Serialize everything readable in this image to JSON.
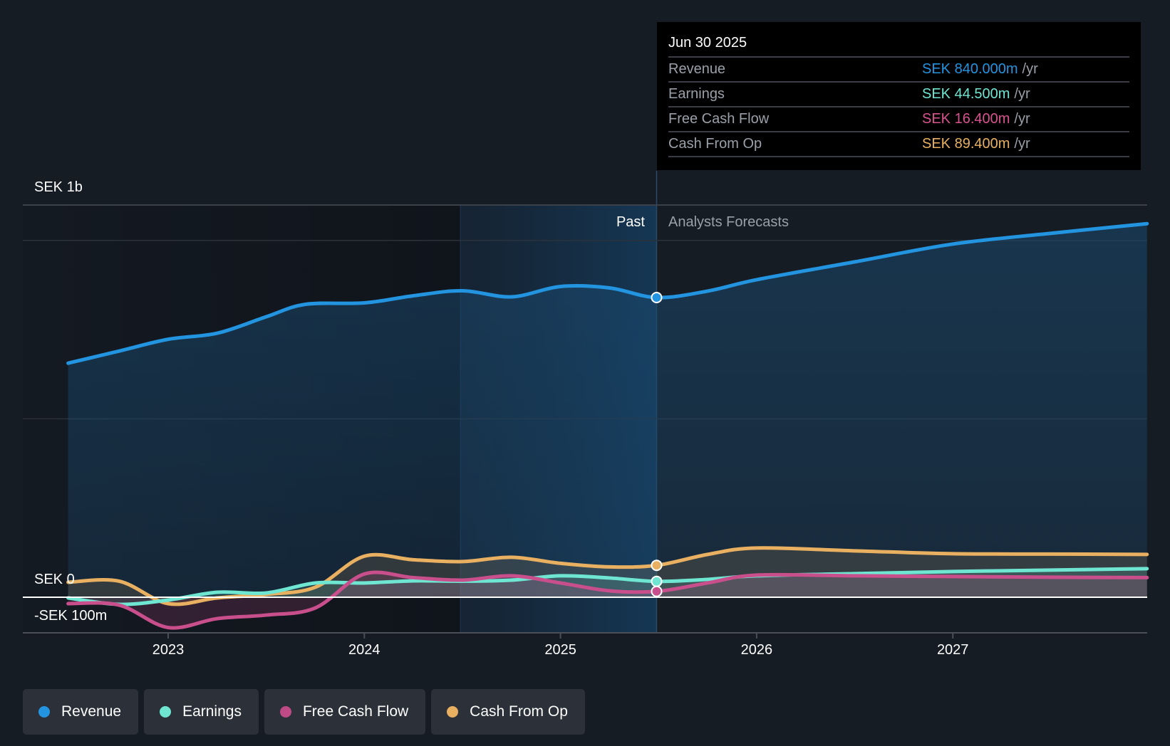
{
  "tooltip": {
    "date": "Jun 30 2025",
    "rows": [
      {
        "label": "Revenue",
        "value": "SEK 840.000m",
        "unit": "/yr",
        "color": "#2394e0"
      },
      {
        "label": "Earnings",
        "value": "SEK 44.500m",
        "unit": "/yr",
        "color": "#6ee6d2"
      },
      {
        "label": "Free Cash Flow",
        "value": "SEK 16.400m",
        "unit": "/yr",
        "color": "#d9528f"
      },
      {
        "label": "Cash From Op",
        "value": "SEK 89.400m",
        "unit": "/yr",
        "color": "#e8b060"
      }
    ]
  },
  "regions": {
    "past": "Past",
    "forecast": "Analysts Forecasts"
  },
  "legend": [
    {
      "label": "Revenue",
      "color": "#2394e0"
    },
    {
      "label": "Earnings",
      "color": "#6ee6d2"
    },
    {
      "label": "Free Cash Flow",
      "color": "#c04a86"
    },
    {
      "label": "Cash From Op",
      "color": "#e8b060"
    }
  ],
  "chart_data": {
    "type": "line",
    "title": "",
    "xlabel": "",
    "ylabel": "",
    "unit": "SEK millions per year",
    "x_range": [
      2022.25,
      2028.0
    ],
    "ylim": [
      -100,
      1100
    ],
    "y_tick_labels": [
      {
        "value": 1000,
        "label": "SEK 1b"
      },
      {
        "value": 0,
        "label": "SEK 0"
      },
      {
        "value": -100,
        "label": "-SEK 100m"
      }
    ],
    "x_ticks": [
      {
        "value": 2023,
        "label": "2023"
      },
      {
        "value": 2024,
        "label": "2024"
      },
      {
        "value": 2025,
        "label": "2025"
      },
      {
        "value": 2026,
        "label": "2026"
      },
      {
        "value": 2027,
        "label": "2027"
      }
    ],
    "past_highlight_start": 2024.49,
    "forecast_start": 2025.49,
    "marker_date": "Jun 30 2025",
    "series": [
      {
        "name": "Revenue",
        "color": "#2394e0",
        "x": [
          2022.49,
          2022.75,
          2023.0,
          2023.25,
          2023.5,
          2023.7,
          2024.0,
          2024.25,
          2024.5,
          2024.75,
          2025.0,
          2025.25,
          2025.49,
          2025.75,
          2026.0,
          2026.5,
          2027.0,
          2027.5,
          2027.99
        ],
        "values": [
          656,
          690,
          723,
          740,
          786,
          821,
          825,
          845,
          859,
          842,
          871,
          867,
          840,
          858,
          890,
          940,
          990,
          1020,
          1047
        ]
      },
      {
        "name": "Earnings",
        "color": "#6ee6d2",
        "x": [
          2022.49,
          2022.75,
          2023.0,
          2023.25,
          2023.5,
          2023.75,
          2024.0,
          2024.25,
          2024.5,
          2024.75,
          2025.0,
          2025.25,
          2025.49,
          2025.75,
          2026.0,
          2026.5,
          2027.0,
          2027.5,
          2027.99
        ],
        "values": [
          -2,
          -20,
          -8,
          14,
          12,
          40,
          40,
          46,
          45,
          48,
          60,
          54,
          44.5,
          50,
          60,
          66,
          72,
          76,
          80
        ]
      },
      {
        "name": "Free Cash Flow",
        "color": "#c94f8c",
        "x": [
          2022.49,
          2022.75,
          2023.0,
          2023.25,
          2023.5,
          2023.75,
          2024.0,
          2024.25,
          2024.5,
          2024.75,
          2025.0,
          2025.25,
          2025.49,
          2025.75,
          2026.0,
          2026.5,
          2027.0,
          2027.5,
          2027.99
        ],
        "values": [
          -18,
          -22,
          -85,
          -60,
          -50,
          -30,
          65,
          55,
          48,
          60,
          40,
          18,
          16.4,
          40,
          62,
          60,
          58,
          56,
          55
        ]
      },
      {
        "name": "Cash From Op",
        "color": "#e8b060",
        "x": [
          2022.49,
          2022.75,
          2023.0,
          2023.25,
          2023.5,
          2023.75,
          2024.0,
          2024.25,
          2024.5,
          2024.75,
          2025.0,
          2025.25,
          2025.49,
          2025.75,
          2026.0,
          2026.5,
          2027.0,
          2027.5,
          2027.99
        ],
        "values": [
          42,
          45,
          -18,
          -2,
          8,
          28,
          115,
          105,
          100,
          112,
          95,
          85,
          89.4,
          120,
          138,
          130,
          122,
          121,
          120
        ]
      }
    ]
  }
}
